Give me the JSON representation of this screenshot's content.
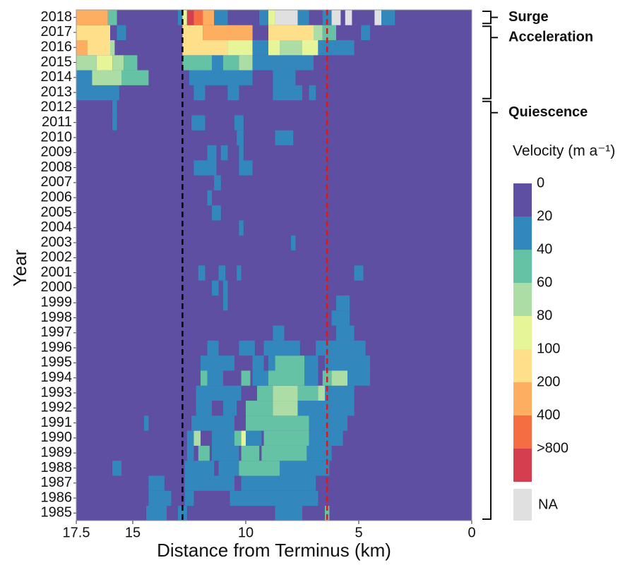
{
  "chart_data": {
    "type": "heatmap",
    "xlabel": "Distance from Terminus (km)",
    "ylabel": "Year",
    "xlim": [
      17.5,
      0
    ],
    "xticks": [
      17.5,
      15,
      10,
      5,
      0
    ],
    "years": [
      "1985",
      "1986",
      "1987",
      "1988",
      "1989",
      "1990",
      "1991",
      "1992",
      "1993",
      "1994",
      "1995",
      "1996",
      "1997",
      "1998",
      "1999",
      "2000",
      "2001",
      "2002",
      "2003",
      "2004",
      "2005",
      "2006",
      "2007",
      "2008",
      "2009",
      "2010",
      "2011",
      "2012",
      "2013",
      "2014",
      "2015",
      "2016",
      "2017",
      "2018"
    ],
    "rows": [
      [
        [
          17.5,
          0,
          0
        ],
        [
          14.4,
          13.5,
          20
        ],
        [
          13.0,
          12.6,
          20
        ],
        [
          8.7,
          7.5,
          20
        ],
        [
          6.5,
          6.3,
          40
        ]
      ],
      [
        [
          17.5,
          0,
          0
        ],
        [
          14.3,
          13.3,
          20
        ],
        [
          12.7,
          12.3,
          20
        ],
        [
          10.7,
          6.8,
          20
        ]
      ],
      [
        [
          17.5,
          0,
          0
        ],
        [
          14.3,
          13.6,
          20
        ],
        [
          12.7,
          10.5,
          20
        ],
        [
          10.2,
          6.9,
          20
        ]
      ],
      [
        [
          17.5,
          0,
          0
        ],
        [
          15.9,
          15.5,
          20
        ],
        [
          12.7,
          11.4,
          20
        ],
        [
          11.2,
          10.3,
          20
        ],
        [
          10.3,
          8.5,
          40
        ],
        [
          8.5,
          6.3,
          20
        ]
      ],
      [
        [
          17.5,
          0,
          0
        ],
        [
          12.6,
          12.3,
          20
        ],
        [
          12.1,
          11.6,
          40
        ],
        [
          11.5,
          10.3,
          20
        ],
        [
          10.2,
          9.4,
          40
        ],
        [
          9.3,
          7.3,
          40
        ],
        [
          7.3,
          6.2,
          20
        ]
      ],
      [
        [
          17.5,
          0,
          0
        ],
        [
          12.6,
          12.3,
          20
        ],
        [
          12.3,
          12.0,
          60
        ],
        [
          11.5,
          10.5,
          20
        ],
        [
          10.5,
          10.2,
          40
        ],
        [
          10.2,
          10.0,
          80
        ],
        [
          10.0,
          9.3,
          20
        ],
        [
          9.2,
          7.2,
          40
        ],
        [
          7.2,
          5.7,
          20
        ]
      ],
      [
        [
          17.5,
          0,
          0
        ],
        [
          14.5,
          14.3,
          20
        ],
        [
          12.4,
          10.5,
          20
        ],
        [
          10.0,
          7.2,
          40
        ],
        [
          7.2,
          5.5,
          20
        ]
      ],
      [
        [
          17.5,
          0,
          0
        ],
        [
          12.2,
          11.5,
          20
        ],
        [
          11.0,
          10.4,
          20
        ],
        [
          10.0,
          8.8,
          40
        ],
        [
          8.8,
          7.7,
          60
        ],
        [
          7.7,
          5.2,
          20
        ]
      ],
      [
        [
          17.5,
          0,
          0
        ],
        [
          12.2,
          10.2,
          20
        ],
        [
          9.5,
          8.8,
          40
        ],
        [
          8.8,
          7.7,
          60
        ],
        [
          7.7,
          6.8,
          40
        ],
        [
          6.8,
          6.5,
          60
        ],
        [
          6.5,
          5.2,
          20
        ]
      ],
      [
        [
          17.5,
          0,
          0
        ],
        [
          12.0,
          11.7,
          40
        ],
        [
          11.7,
          11.0,
          20
        ],
        [
          10.2,
          9.8,
          40
        ],
        [
          9.7,
          9.0,
          20
        ],
        [
          9.0,
          7.4,
          40
        ],
        [
          7.4,
          6.8,
          20
        ],
        [
          6.6,
          6.2,
          40
        ],
        [
          6.2,
          5.5,
          60
        ],
        [
          5.5,
          4.5,
          20
        ]
      ],
      [
        [
          17.5,
          0,
          0
        ],
        [
          12.0,
          10.5,
          20
        ],
        [
          9.7,
          9.2,
          20
        ],
        [
          9.0,
          8.7,
          20
        ],
        [
          8.7,
          7.4,
          40
        ],
        [
          7.4,
          6.8,
          20
        ],
        [
          6.5,
          4.5,
          20
        ]
      ],
      [
        [
          17.5,
          0,
          0
        ],
        [
          11.7,
          11.2,
          20
        ],
        [
          10.3,
          9.6,
          20
        ],
        [
          9.2,
          7.6,
          20
        ],
        [
          6.9,
          4.7,
          20
        ]
      ],
      [
        [
          17.5,
          0,
          0
        ],
        [
          8.8,
          8.3,
          20
        ],
        [
          6.0,
          5.2,
          20
        ]
      ],
      [
        [
          17.5,
          0,
          0
        ],
        [
          6.2,
          5.4,
          20
        ]
      ],
      [
        [
          17.5,
          0,
          0
        ],
        [
          11.0,
          10.8,
          20
        ],
        [
          6.0,
          5.4,
          20
        ]
      ],
      [
        [
          17.5,
          0,
          0
        ],
        [
          11.5,
          11.2,
          20
        ],
        [
          11.0,
          10.8,
          20
        ]
      ],
      [
        [
          17.5,
          0,
          0
        ],
        [
          12.1,
          11.8,
          20
        ],
        [
          11.2,
          10.9,
          20
        ],
        [
          10.4,
          10.2,
          20
        ],
        [
          5.2,
          4.8,
          20
        ]
      ],
      [
        [
          17.5,
          0,
          0
        ]
      ],
      [
        [
          17.5,
          0,
          0
        ],
        [
          8.0,
          7.8,
          20
        ]
      ],
      [
        [
          17.5,
          0,
          0
        ],
        [
          10.3,
          10.1,
          20
        ]
      ],
      [
        [
          17.5,
          0,
          0
        ],
        [
          11.5,
          11.1,
          20
        ]
      ],
      [
        [
          17.5,
          0,
          0
        ],
        [
          11.7,
          11.5,
          20
        ]
      ],
      [
        [
          17.5,
          0,
          0
        ],
        [
          11.4,
          11.1,
          20
        ]
      ],
      [
        [
          17.5,
          0,
          0
        ],
        [
          12.3,
          11.3,
          20
        ],
        [
          10.3,
          9.7,
          20
        ]
      ],
      [
        [
          17.5,
          0,
          0
        ],
        [
          11.7,
          11.3,
          20
        ],
        [
          11.1,
          10.8,
          20
        ],
        [
          10.3,
          10.1,
          20
        ]
      ],
      [
        [
          17.5,
          0,
          0
        ],
        [
          10.4,
          10.1,
          20
        ],
        [
          8.7,
          7.9,
          20
        ]
      ],
      [
        [
          17.5,
          0,
          0
        ],
        [
          15.9,
          15.7,
          20
        ],
        [
          12.4,
          11.8,
          20
        ],
        [
          10.5,
          10.1,
          20
        ]
      ],
      [
        [
          17.5,
          0,
          0
        ],
        [
          15.9,
          15.7,
          20
        ]
      ],
      [
        [
          17.5,
          0,
          0
        ],
        [
          17.5,
          15.6,
          20
        ],
        [
          12.3,
          11.8,
          20
        ],
        [
          10.8,
          10.3,
          20
        ],
        [
          8.8,
          7.5,
          20
        ],
        [
          7.2,
          6.9,
          20
        ]
      ],
      [
        [
          17.5,
          0,
          0
        ],
        [
          17.5,
          16.8,
          20
        ],
        [
          16.8,
          15.5,
          60
        ],
        [
          15.5,
          14.3,
          40
        ],
        [
          12.5,
          9.7,
          20
        ],
        [
          8.8,
          7.8,
          20
        ]
      ],
      [
        [
          17.5,
          0,
          0
        ],
        [
          17.5,
          16.6,
          60
        ],
        [
          16.6,
          15.9,
          80
        ],
        [
          15.9,
          15.4,
          60
        ],
        [
          15.4,
          14.8,
          40
        ],
        [
          12.8,
          11.5,
          40
        ],
        [
          11.5,
          11.0,
          20
        ],
        [
          11.0,
          10.3,
          40
        ],
        [
          10.3,
          9.7,
          60
        ],
        [
          9.7,
          7.0,
          20
        ]
      ],
      [
        [
          17.5,
          0,
          0
        ],
        [
          17.5,
          17.0,
          200
        ],
        [
          17.0,
          16.0,
          100
        ],
        [
          16.0,
          15.8,
          60
        ],
        [
          12.8,
          10.8,
          100
        ],
        [
          10.8,
          9.7,
          80
        ],
        [
          9.7,
          9.0,
          20
        ],
        [
          9.0,
          8.5,
          80
        ],
        [
          8.5,
          7.5,
          60
        ],
        [
          7.5,
          6.8,
          80
        ],
        [
          6.8,
          5.2,
          20
        ]
      ],
      [
        [
          17.5,
          0,
          0
        ],
        [
          17.5,
          16.0,
          100
        ],
        [
          15.7,
          15.3,
          20
        ],
        [
          12.8,
          11.9,
          100
        ],
        [
          11.9,
          9.7,
          200
        ],
        [
          9.0,
          7.0,
          100
        ],
        [
          7.0,
          6.6,
          60
        ],
        [
          6.6,
          6.0,
          40
        ],
        [
          4.9,
          4.5,
          20
        ]
      ],
      [
        [
          17.5,
          0,
          0
        ],
        [
          17.5,
          16.1,
          200
        ],
        [
          16.1,
          15.7,
          40
        ],
        [
          13.0,
          12.8,
          20
        ],
        [
          12.8,
          12.6,
          80
        ],
        [
          12.6,
          12.3,
          800
        ],
        [
          12.3,
          11.9,
          400
        ],
        [
          11.9,
          11.4,
          200
        ],
        [
          11.4,
          10.8,
          20
        ],
        [
          9.4,
          9.0,
          20
        ],
        [
          9.0,
          8.7,
          80
        ],
        [
          8.7,
          7.7,
          null
        ],
        [
          7.7,
          7.2,
          20
        ],
        [
          6.6,
          6.1,
          20
        ],
        [
          6.2,
          5.8,
          null
        ],
        [
          5.6,
          5.3,
          null
        ],
        [
          4.3,
          4.0,
          null
        ],
        [
          4.0,
          3.4,
          20
        ]
      ]
    ],
    "lines": [
      {
        "x": 12.8,
        "color": "#000000"
      },
      {
        "x": 6.4,
        "color": "#d7191c"
      }
    ],
    "phases": [
      {
        "label": "Surge",
        "from": "2018",
        "to": "2018"
      },
      {
        "label": "Acceleration",
        "from": "2013",
        "to": "2017"
      },
      {
        "label": "Quiescence",
        "from": "1985",
        "to": "2012"
      }
    ],
    "colorbar": {
      "title": "Velocity (m a⁻¹)",
      "ticks": [
        0,
        20,
        40,
        60,
        80,
        100,
        200,
        400,
        {
          "value": 800,
          "label": ">800"
        }
      ],
      "colors": [
        "#5e4fa2",
        "#3288bd",
        "#66c2a5",
        "#abdda4",
        "#e6f598",
        "#fee08b",
        "#fdae61",
        "#f46d43",
        "#d53e4f"
      ],
      "na_label": "NA",
      "na_color": "#e0e0e0"
    }
  }
}
